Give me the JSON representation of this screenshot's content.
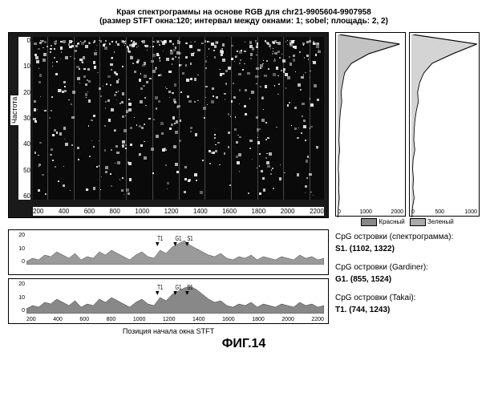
{
  "title_line1": "Края спектрограммы на основе RGB для chr21-9905604-9907958",
  "title_line2": "(размер STFT окна:120; интервал между окнами: 1; sobel; площадь: 2, 2)",
  "spectrogram": {
    "type": "heatmap",
    "y_label": "Частота",
    "x_label": "Позиция начала окна STFT",
    "y_ticks": [
      "0",
      "10",
      "20",
      "30",
      "40",
      "50",
      "60"
    ],
    "x_ticks": [
      "200",
      "400",
      "600",
      "800",
      "1000",
      "1200",
      "1400",
      "1600",
      "1800",
      "2000",
      "2200"
    ],
    "ylim": [
      0,
      60
    ],
    "xlim": [
      0,
      2300
    ],
    "background_color": "#0a0a0a",
    "noise_color": "#ffffff",
    "markers": [
      "T1",
      "G1",
      "S1"
    ]
  },
  "side": {
    "type": "line",
    "plots": [
      {
        "x_ticks": [
          "0",
          "1000",
          "2000"
        ],
        "xlim": [
          0,
          2000
        ],
        "data": [
          50,
          1800,
          900,
          400,
          200,
          150,
          100,
          120,
          80,
          60,
          50,
          40,
          60,
          30,
          20,
          40,
          30,
          50,
          20,
          10
        ],
        "legend": "Красный",
        "color": "#888888"
      },
      {
        "x_ticks": [
          "0",
          "500",
          "1000"
        ],
        "xlim": [
          0,
          1000
        ],
        "data": [
          20,
          950,
          600,
          300,
          180,
          120,
          90,
          100,
          70,
          50,
          40,
          35,
          50,
          25,
          18,
          30,
          22,
          40,
          15,
          8
        ],
        "legend": "Зеленый",
        "color": "#aaaaaa"
      }
    ]
  },
  "bottom": {
    "type": "area",
    "plots": [
      {
        "y_ticks": [
          "20",
          "10",
          "0"
        ],
        "ylim": [
          0,
          20
        ],
        "markers": [
          "T1",
          "G1",
          "S1"
        ],
        "data": [
          2,
          4,
          3,
          6,
          5,
          8,
          6,
          4,
          7,
          3,
          5,
          4,
          8,
          6,
          9,
          7,
          5,
          3,
          6,
          8,
          5,
          4,
          9,
          7,
          11,
          13,
          15,
          12,
          10,
          8,
          6,
          5,
          7,
          4,
          3,
          5,
          4,
          6,
          3,
          5,
          4,
          3,
          5,
          4,
          3,
          6,
          4,
          5,
          3,
          4
        ],
        "fill_color": "#9a9a9a",
        "line_color": "#333333"
      },
      {
        "y_ticks": [
          "20",
          "10",
          "0"
        ],
        "ylim": [
          0,
          20
        ],
        "markers": [
          "T1",
          "G1",
          "S1"
        ],
        "data": [
          3,
          5,
          4,
          7,
          6,
          9,
          7,
          5,
          8,
          4,
          6,
          5,
          9,
          7,
          10,
          8,
          6,
          4,
          7,
          9,
          6,
          5,
          10,
          8,
          12,
          14,
          16,
          17,
          15,
          12,
          9,
          7,
          8,
          5,
          4,
          6,
          5,
          7,
          4,
          6,
          5,
          4,
          6,
          5,
          4,
          7,
          5,
          6,
          4,
          5
        ],
        "fill_color": "#888888",
        "line_color": "#222222"
      }
    ],
    "x_ticks": [
      "200",
      "400",
      "600",
      "800",
      "1000",
      "1200",
      "1400",
      "1600",
      "1800",
      "2000",
      "2200"
    ]
  },
  "cpg": {
    "header1": "CpG островки (спектрограмма):",
    "s1": "S1. (1102, 1322)",
    "header2": "CpG островки (Gardiner):",
    "g1": "G1. (855, 1524)",
    "header3": "CpG островки (Takai):",
    "t1": "T1. (744, 1243)"
  },
  "figure_label": "ФИГ.14"
}
